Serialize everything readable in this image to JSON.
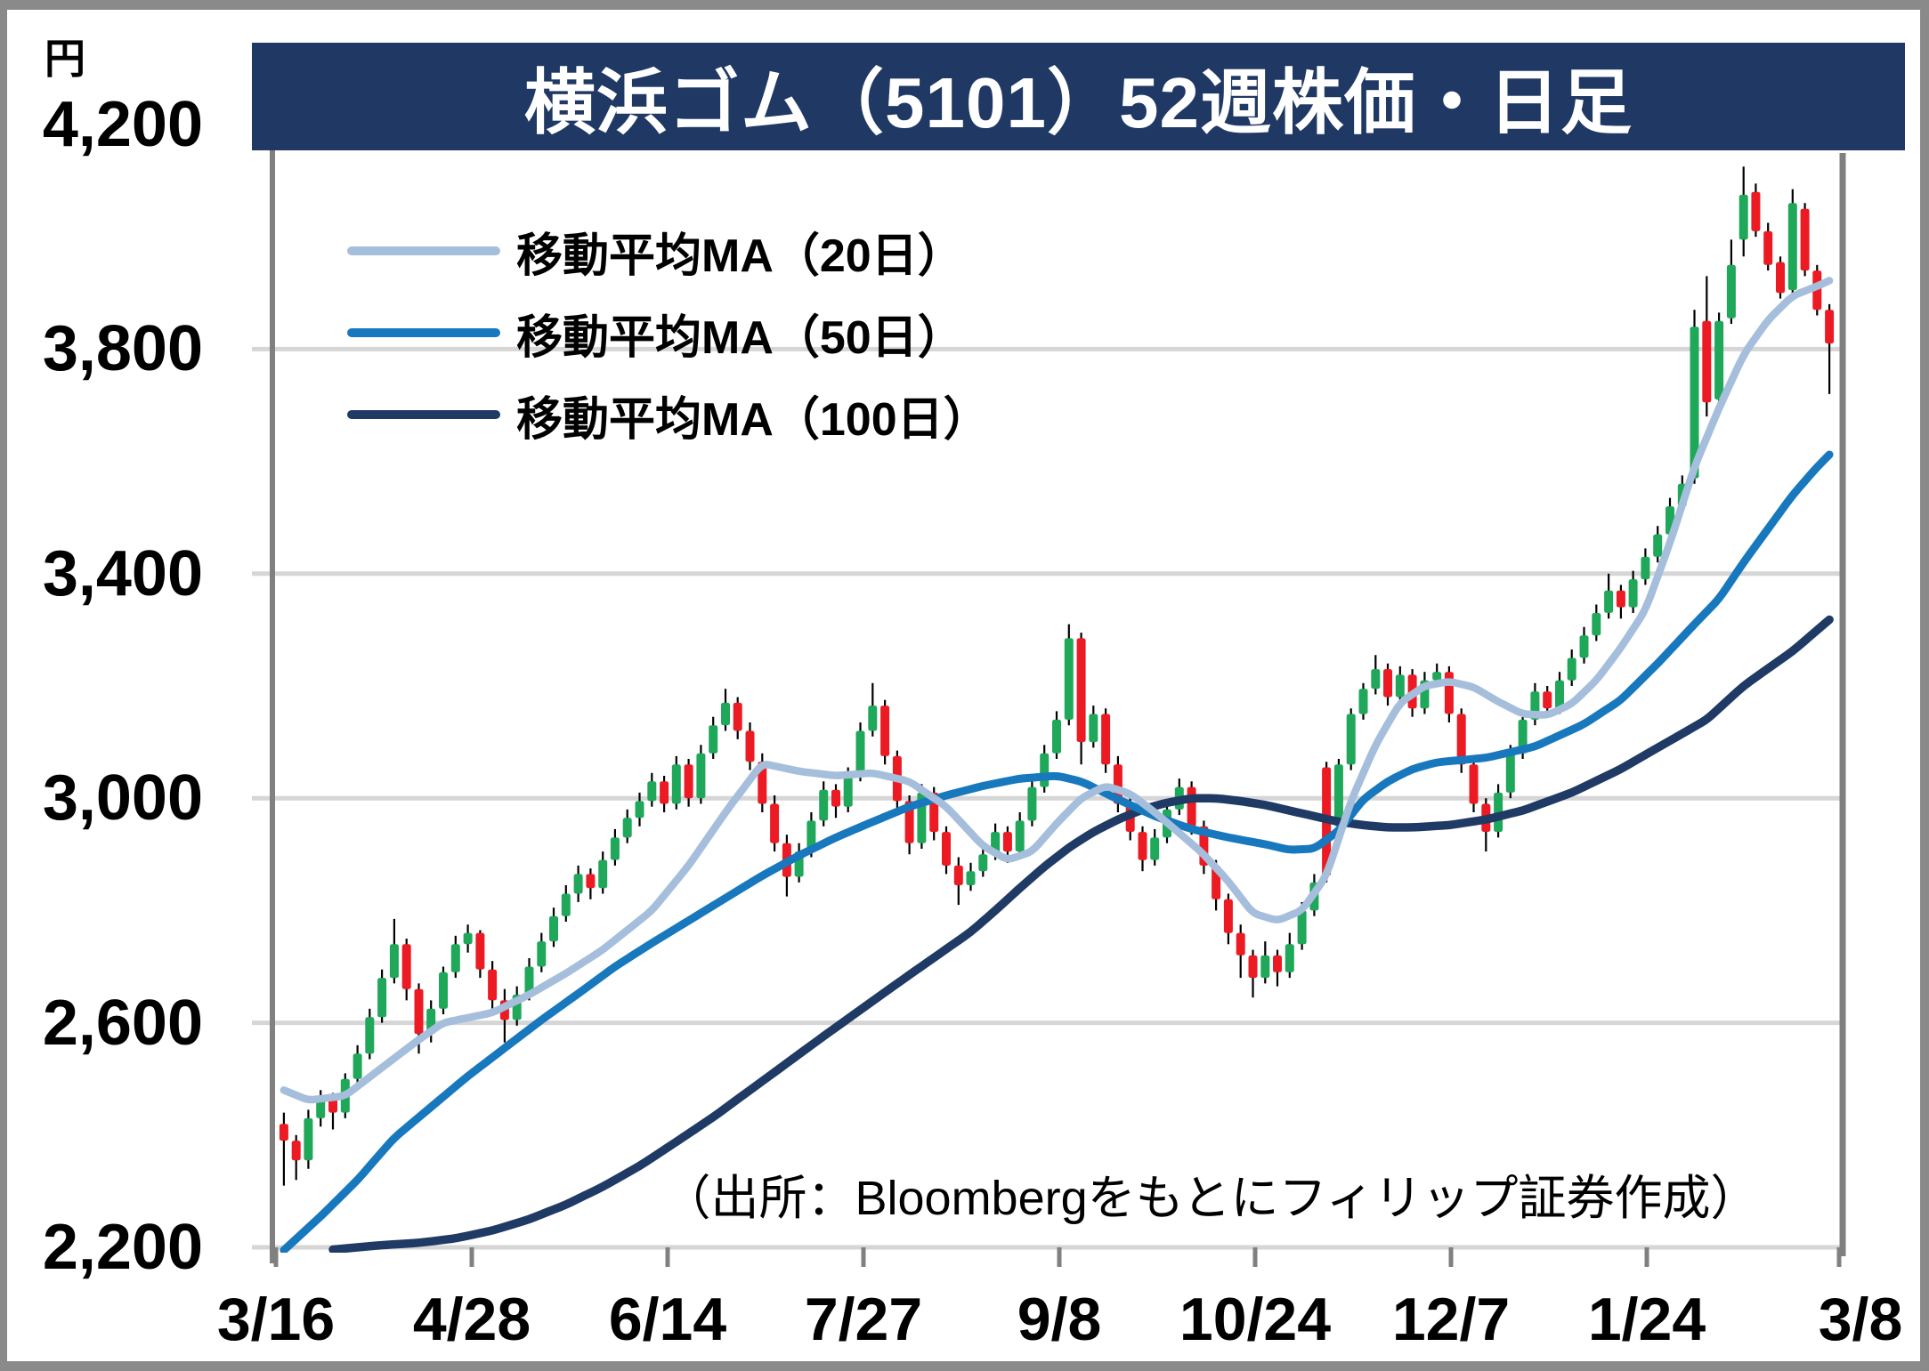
{
  "title": "横浜ゴム（5101）52週株価・日足",
  "y_axis": {
    "unit": "円",
    "ticks": [
      "4,200",
      "3,800",
      "3,400",
      "3,000",
      "2,600",
      "2,200"
    ]
  },
  "x_axis": {
    "ticks": [
      "3/16",
      "4/28",
      "6/14",
      "7/27",
      "9/8",
      "10/24",
      "12/7",
      "1/24",
      "3/8"
    ]
  },
  "legend": [
    {
      "label": "移動平均MA（20日）",
      "color": "#A5BEDC"
    },
    {
      "label": "移動平均MA（50日）",
      "color": "#1878BE"
    },
    {
      "label": "移動平均MA（100日）",
      "color": "#1F3A64"
    }
  ],
  "source_note": "（出所：Bloombergをもとにフィリップ証券作成）",
  "chart_data": {
    "type": "candlestick",
    "title": "横浜ゴム（5101）52週株価・日足",
    "ylabel": "円",
    "ylim": [
      2200,
      4200
    ],
    "y_ticks": [
      2200,
      2600,
      3000,
      3400,
      3800,
      4200
    ],
    "x_tick_labels": [
      "3/16",
      "4/28",
      "6/14",
      "7/27",
      "9/8",
      "10/24",
      "12/7",
      "1/24",
      "3/8"
    ],
    "grid": true,
    "legend_position": "top-left",
    "colors": {
      "up": "#1FA75A",
      "down": "#EC1B23",
      "wick": "#000000",
      "ma20": "#A5BEDC",
      "ma50": "#1878BE",
      "ma100": "#1F3A64",
      "grid": "#D6D6D6",
      "axis": "#808080",
      "title_bg": "#1F3864"
    },
    "candles": [
      [
        2420,
        2440,
        2310,
        2390
      ],
      [
        2390,
        2400,
        2320,
        2355
      ],
      [
        2355,
        2445,
        2340,
        2430
      ],
      [
        2430,
        2480,
        2415,
        2465
      ],
      [
        2465,
        2475,
        2410,
        2440
      ],
      [
        2440,
        2510,
        2430,
        2500
      ],
      [
        2500,
        2560,
        2490,
        2545
      ],
      [
        2545,
        2625,
        2535,
        2610
      ],
      [
        2610,
        2695,
        2600,
        2680
      ],
      [
        2680,
        2785,
        2670,
        2740
      ],
      [
        2740,
        2750,
        2640,
        2660
      ],
      [
        2660,
        2670,
        2545,
        2580
      ],
      [
        2580,
        2640,
        2565,
        2625
      ],
      [
        2625,
        2700,
        2615,
        2690
      ],
      [
        2690,
        2755,
        2680,
        2740
      ],
      [
        2740,
        2775,
        2725,
        2760
      ],
      [
        2760,
        2765,
        2680,
        2695
      ],
      [
        2695,
        2710,
        2620,
        2640
      ],
      [
        2640,
        2660,
        2565,
        2605
      ],
      [
        2605,
        2665,
        2595,
        2650
      ],
      [
        2650,
        2715,
        2640,
        2700
      ],
      [
        2700,
        2760,
        2690,
        2745
      ],
      [
        2745,
        2805,
        2735,
        2790
      ],
      [
        2790,
        2845,
        2780,
        2830
      ],
      [
        2830,
        2880,
        2815,
        2865
      ],
      [
        2865,
        2875,
        2820,
        2840
      ],
      [
        2840,
        2905,
        2830,
        2890
      ],
      [
        2890,
        2945,
        2880,
        2930
      ],
      [
        2930,
        2980,
        2920,
        2965
      ],
      [
        2965,
        3010,
        2950,
        2995
      ],
      [
        2995,
        3045,
        2985,
        3030
      ],
      [
        3030,
        3040,
        2975,
        2990
      ],
      [
        2990,
        3075,
        2980,
        3060
      ],
      [
        3060,
        3070,
        2985,
        3000
      ],
      [
        3000,
        3095,
        2990,
        3080
      ],
      [
        3080,
        3145,
        3070,
        3130
      ],
      [
        3130,
        3195,
        3120,
        3170
      ],
      [
        3170,
        3180,
        3105,
        3120
      ],
      [
        3120,
        3135,
        3050,
        3065
      ],
      [
        3065,
        3080,
        2975,
        2990
      ],
      [
        2990,
        3005,
        2905,
        2920
      ],
      [
        2920,
        2935,
        2825,
        2860
      ],
      [
        2860,
        2920,
        2850,
        2905
      ],
      [
        2905,
        2975,
        2895,
        2960
      ],
      [
        2960,
        3030,
        2950,
        3015
      ],
      [
        3015,
        3025,
        2965,
        2985
      ],
      [
        2985,
        3055,
        2975,
        3040
      ],
      [
        3040,
        3135,
        3030,
        3120
      ],
      [
        3120,
        3205,
        3110,
        3165
      ],
      [
        3165,
        3175,
        3060,
        3075
      ],
      [
        3075,
        3085,
        2980,
        2995
      ],
      [
        2995,
        3005,
        2900,
        2920
      ],
      [
        2920,
        3025,
        2910,
        3010
      ],
      [
        3010,
        3020,
        2925,
        2940
      ],
      [
        2940,
        2950,
        2865,
        2880
      ],
      [
        2880,
        2895,
        2810,
        2845
      ],
      [
        2845,
        2885,
        2835,
        2870
      ],
      [
        2870,
        2915,
        2860,
        2900
      ],
      [
        2900,
        2955,
        2890,
        2940
      ],
      [
        2940,
        2950,
        2885,
        2905
      ],
      [
        2905,
        2975,
        2895,
        2960
      ],
      [
        2960,
        3035,
        2950,
        3020
      ],
      [
        3020,
        3095,
        3010,
        3080
      ],
      [
        3080,
        3155,
        3070,
        3140
      ],
      [
        3140,
        3310,
        3130,
        3285
      ],
      [
        3285,
        3295,
        3060,
        3100
      ],
      [
        3100,
        3165,
        3090,
        3150
      ],
      [
        3150,
        3160,
        3045,
        3060
      ],
      [
        3060,
        3075,
        2975,
        2990
      ],
      [
        2990,
        3000,
        2925,
        2940
      ],
      [
        2940,
        2950,
        2870,
        2890
      ],
      [
        2890,
        2945,
        2880,
        2930
      ],
      [
        2930,
        2995,
        2920,
        2980
      ],
      [
        2980,
        3035,
        2970,
        3020
      ],
      [
        3020,
        3030,
        2935,
        2950
      ],
      [
        2950,
        2960,
        2865,
        2880
      ],
      [
        2880,
        2890,
        2800,
        2820
      ],
      [
        2820,
        2830,
        2740,
        2760
      ],
      [
        2760,
        2775,
        2680,
        2720
      ],
      [
        2720,
        2730,
        2645,
        2680
      ],
      [
        2680,
        2745,
        2670,
        2720
      ],
      [
        2720,
        2730,
        2665,
        2690
      ],
      [
        2690,
        2760,
        2680,
        2740
      ],
      [
        2740,
        2815,
        2730,
        2800
      ],
      [
        2800,
        2865,
        2790,
        2850
      ],
      [
        3055,
        3065,
        2850,
        2862
      ],
      [
        2950,
        3070,
        2940,
        3060
      ],
      [
        3060,
        3160,
        3050,
        3150
      ],
      [
        3150,
        3205,
        3140,
        3195
      ],
      [
        3195,
        3255,
        3185,
        3230
      ],
      [
        3230,
        3240,
        3165,
        3180
      ],
      [
        3180,
        3235,
        3170,
        3220
      ],
      [
        3220,
        3230,
        3145,
        3160
      ],
      [
        3160,
        3225,
        3150,
        3210
      ],
      [
        3210,
        3240,
        3200,
        3225
      ],
      [
        3225,
        3235,
        3135,
        3150
      ],
      [
        3150,
        3160,
        3045,
        3060
      ],
      [
        3060,
        3070,
        2975,
        2990
      ],
      [
        2990,
        3000,
        2905,
        2940
      ],
      [
        2940,
        3025,
        2930,
        3010
      ],
      [
        3010,
        3095,
        3000,
        3080
      ],
      [
        3080,
        3155,
        3070,
        3140
      ],
      [
        3140,
        3205,
        3130,
        3190
      ],
      [
        3190,
        3200,
        3145,
        3160
      ],
      [
        3160,
        3225,
        3150,
        3210
      ],
      [
        3210,
        3265,
        3200,
        3250
      ],
      [
        3250,
        3305,
        3240,
        3290
      ],
      [
        3290,
        3345,
        3280,
        3330
      ],
      [
        3330,
        3400,
        3320,
        3370
      ],
      [
        3370,
        3380,
        3320,
        3340
      ],
      [
        3340,
        3405,
        3330,
        3390
      ],
      [
        3390,
        3445,
        3380,
        3430
      ],
      [
        3430,
        3485,
        3420,
        3470
      ],
      [
        3470,
        3535,
        3460,
        3520
      ],
      [
        3520,
        3575,
        3510,
        3560
      ],
      [
        3570,
        3870,
        3560,
        3840
      ],
      [
        3850,
        3930,
        3680,
        3705
      ],
      [
        3710,
        3865,
        3700,
        3850
      ],
      [
        3855,
        3995,
        3845,
        3950
      ],
      [
        3995,
        4125,
        3965,
        4075
      ],
      [
        4080,
        4095,
        4000,
        4010
      ],
      [
        4010,
        4025,
        3940,
        3950
      ],
      [
        3955,
        3965,
        3890,
        3900
      ],
      [
        3905,
        4085,
        3895,
        4060
      ],
      [
        4050,
        4060,
        3930,
        3940
      ],
      [
        3940,
        3950,
        3860,
        3870
      ],
      [
        3870,
        3880,
        3720,
        3810
      ]
    ],
    "ma20": [
      [
        0,
        2480
      ],
      [
        2,
        2462
      ],
      [
        5,
        2470
      ],
      [
        8,
        2520
      ],
      [
        11,
        2570
      ],
      [
        13,
        2600
      ],
      [
        17,
        2618
      ],
      [
        20,
        2650
      ],
      [
        23,
        2688
      ],
      [
        26,
        2730
      ],
      [
        30,
        2800
      ],
      [
        33,
        2880
      ],
      [
        36,
        2975
      ],
      [
        39,
        3062
      ],
      [
        42,
        3048
      ],
      [
        45,
        3040
      ],
      [
        48,
        3045
      ],
      [
        51,
        3030
      ],
      [
        54,
        2985
      ],
      [
        57,
        2915
      ],
      [
        59,
        2890
      ],
      [
        61,
        2905
      ],
      [
        63,
        2955
      ],
      [
        65,
        3000
      ],
      [
        67,
        3022
      ],
      [
        69,
        3008
      ],
      [
        71,
        2975
      ],
      [
        73,
        2938
      ],
      [
        75,
        2900
      ],
      [
        77,
        2852
      ],
      [
        79,
        2795
      ],
      [
        81,
        2782
      ],
      [
        83,
        2800
      ],
      [
        85,
        2862
      ],
      [
        87,
        2995
      ],
      [
        89,
        3095
      ],
      [
        91,
        3170
      ],
      [
        93,
        3200
      ],
      [
        95,
        3208
      ],
      [
        97,
        3198
      ],
      [
        99,
        3172
      ],
      [
        101,
        3150
      ],
      [
        103,
        3148
      ],
      [
        105,
        3168
      ],
      [
        107,
        3210
      ],
      [
        109,
        3268
      ],
      [
        111,
        3335
      ],
      [
        113,
        3455
      ],
      [
        115,
        3590
      ],
      [
        117,
        3695
      ],
      [
        119,
        3790
      ],
      [
        121,
        3852
      ],
      [
        123,
        3895
      ],
      [
        125,
        3912
      ],
      [
        126,
        3922
      ]
    ],
    "ma50": [
      [
        0,
        2195
      ],
      [
        3,
        2255
      ],
      [
        6,
        2320
      ],
      [
        9,
        2395
      ],
      [
        12,
        2450
      ],
      [
        15,
        2505
      ],
      [
        18,
        2555
      ],
      [
        21,
        2605
      ],
      [
        24,
        2652
      ],
      [
        27,
        2700
      ],
      [
        30,
        2742
      ],
      [
        33,
        2782
      ],
      [
        36,
        2822
      ],
      [
        39,
        2862
      ],
      [
        42,
        2898
      ],
      [
        45,
        2930
      ],
      [
        48,
        2958
      ],
      [
        51,
        2985
      ],
      [
        54,
        3005
      ],
      [
        57,
        3022
      ],
      [
        60,
        3035
      ],
      [
        63,
        3040
      ],
      [
        65,
        3030
      ],
      [
        68,
        2998
      ],
      [
        71,
        2968
      ],
      [
        74,
        2945
      ],
      [
        77,
        2930
      ],
      [
        80,
        2918
      ],
      [
        82,
        2908
      ],
      [
        84,
        2910
      ],
      [
        86,
        2942
      ],
      [
        88,
        2998
      ],
      [
        90,
        3030
      ],
      [
        92,
        3052
      ],
      [
        94,
        3064
      ],
      [
        96,
        3068
      ],
      [
        98,
        3072
      ],
      [
        100,
        3082
      ],
      [
        102,
        3092
      ],
      [
        104,
        3112
      ],
      [
        106,
        3132
      ],
      [
        109,
        3175
      ],
      [
        112,
        3240
      ],
      [
        115,
        3310
      ],
      [
        117,
        3355
      ],
      [
        119,
        3420
      ],
      [
        121,
        3480
      ],
      [
        123,
        3540
      ],
      [
        125,
        3590
      ],
      [
        126,
        3612
      ]
    ],
    "ma100": [
      [
        4,
        2196
      ],
      [
        8,
        2204
      ],
      [
        11,
        2208
      ],
      [
        14,
        2216
      ],
      [
        17,
        2230
      ],
      [
        20,
        2250
      ],
      [
        23,
        2276
      ],
      [
        26,
        2308
      ],
      [
        29,
        2345
      ],
      [
        32,
        2388
      ],
      [
        35,
        2432
      ],
      [
        38,
        2480
      ],
      [
        41,
        2528
      ],
      [
        44,
        2576
      ],
      [
        47,
        2623
      ],
      [
        50,
        2670
      ],
      [
        53,
        2716
      ],
      [
        56,
        2762
      ],
      [
        58,
        2800
      ],
      [
        60,
        2840
      ],
      [
        62,
        2878
      ],
      [
        64,
        2912
      ],
      [
        66,
        2940
      ],
      [
        68,
        2962
      ],
      [
        70,
        2980
      ],
      [
        72,
        2992
      ],
      [
        74,
        3000
      ],
      [
        76,
        3000
      ],
      [
        78,
        2995
      ],
      [
        80,
        2988
      ],
      [
        82,
        2978
      ],
      [
        84,
        2968
      ],
      [
        86,
        2958
      ],
      [
        88,
        2952
      ],
      [
        90,
        2948
      ],
      [
        92,
        2948
      ],
      [
        95,
        2952
      ],
      [
        98,
        2962
      ],
      [
        101,
        2978
      ],
      [
        105,
        3010
      ],
      [
        109,
        3052
      ],
      [
        112,
        3090
      ],
      [
        116,
        3140
      ],
      [
        119,
        3200
      ],
      [
        123,
        3262
      ],
      [
        126,
        3318
      ]
    ]
  }
}
